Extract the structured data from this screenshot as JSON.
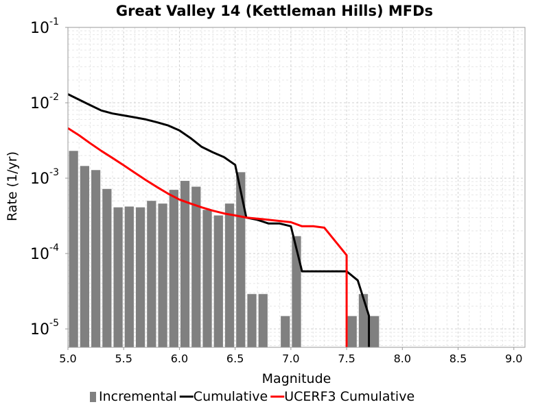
{
  "chart_data": {
    "type": "bar",
    "title": "Great Valley 14 (Kettleman Hills) MFDs",
    "xlabel": "Magnitude",
    "ylabel": "Rate (1/yr)",
    "xlim": [
      5.0,
      9.1
    ],
    "ylim": [
      5.7e-06,
      0.1
    ],
    "y_scale": "log",
    "grid": true,
    "legend_position": "bottom",
    "x_ticks": [
      "5.0",
      "5.5",
      "6.0",
      "6.5",
      "7.0",
      "7.5",
      "8.0",
      "8.5",
      "9.0"
    ],
    "y_ticks": [
      {
        "base": "10",
        "exp": "-5",
        "value": 1e-05
      },
      {
        "base": "10",
        "exp": "-4",
        "value": 0.0001
      },
      {
        "base": "10",
        "exp": "-3",
        "value": 0.001
      },
      {
        "base": "10",
        "exp": "-2",
        "value": 0.01
      },
      {
        "base": "10",
        "exp": "-1",
        "value": 0.1
      }
    ],
    "series": [
      {
        "name": "Incremental",
        "kind": "bar",
        "color": "#808080",
        "bar_width": 0.1,
        "x": [
          5.05,
          5.15,
          5.25,
          5.35,
          5.45,
          5.55,
          5.65,
          5.75,
          5.85,
          5.95,
          6.05,
          6.15,
          6.25,
          6.35,
          6.45,
          6.55,
          6.65,
          6.75,
          6.95,
          7.05,
          7.55,
          7.65,
          7.75
        ],
        "y": [
          0.0023,
          0.00145,
          0.00128,
          0.00072,
          0.00041,
          0.00042,
          0.00041,
          0.0005,
          0.00046,
          0.0007,
          0.00092,
          0.00077,
          0.00038,
          0.00032,
          0.00046,
          0.0012,
          2.9e-05,
          2.9e-05,
          1.48e-05,
          0.00017,
          1.48e-05,
          2.9e-05,
          1.48e-05
        ]
      },
      {
        "name": "Cumulative",
        "kind": "line",
        "color": "#000000",
        "x": [
          5.0,
          5.1,
          5.2,
          5.3,
          5.4,
          5.5,
          5.6,
          5.7,
          5.8,
          5.9,
          6.0,
          6.1,
          6.2,
          6.3,
          6.4,
          6.5,
          6.6,
          6.7,
          6.8,
          6.9,
          7.0,
          7.1,
          7.2,
          7.3,
          7.4,
          7.5,
          7.6,
          7.7,
          7.7
        ],
        "y": [
          0.013,
          0.011,
          0.0093,
          0.0079,
          0.0072,
          0.0068,
          0.0064,
          0.006,
          0.0055,
          0.005,
          0.0043,
          0.0034,
          0.0026,
          0.0022,
          0.0019,
          0.0015,
          0.0003,
          0.00028,
          0.00025,
          0.00025,
          0.00023,
          5.8e-05,
          5.8e-05,
          5.8e-05,
          5.8e-05,
          5.8e-05,
          4.4e-05,
          1.5e-05,
          5.7e-06
        ]
      },
      {
        "name": "UCERF3 Cumulative",
        "kind": "line",
        "color": "#ff0000",
        "x": [
          5.0,
          5.1,
          5.2,
          5.3,
          5.4,
          5.5,
          5.6,
          5.7,
          5.8,
          5.9,
          6.0,
          6.1,
          6.2,
          6.3,
          6.4,
          6.5,
          6.6,
          6.7,
          6.8,
          6.9,
          7.0,
          7.1,
          7.2,
          7.3,
          7.5,
          7.5
        ],
        "y": [
          0.0046,
          0.0037,
          0.0029,
          0.0023,
          0.00185,
          0.00148,
          0.00118,
          0.00094,
          0.00076,
          0.00062,
          0.00052,
          0.00046,
          0.00041,
          0.00037,
          0.00034,
          0.00032,
          0.0003,
          0.00029,
          0.00028,
          0.00027,
          0.00026,
          0.00023,
          0.00023,
          0.00022,
          9.5e-05,
          5.7e-06
        ]
      }
    ]
  }
}
